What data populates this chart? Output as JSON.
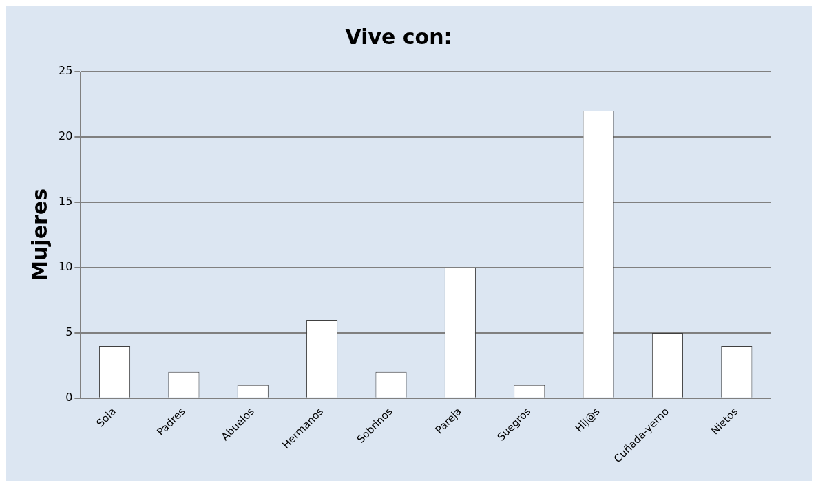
{
  "chart_data": {
    "type": "bar",
    "title": "Vive con:",
    "ylabel": "Mujeres",
    "categories": [
      "Sola",
      "Padres",
      "Abuelos",
      "Hermanos",
      "Sobrinos",
      "Pareja",
      "Suegros",
      "Hij@s",
      "Cuñada-yerno",
      "Nietos"
    ],
    "values": [
      4,
      2,
      1,
      6,
      2,
      10,
      1,
      22,
      5,
      4
    ],
    "color": "#ffffff",
    "ylim": [
      0,
      25
    ],
    "yticks": [
      0,
      5,
      10,
      15,
      20,
      25
    ],
    "grid": "y",
    "legend": false
  }
}
